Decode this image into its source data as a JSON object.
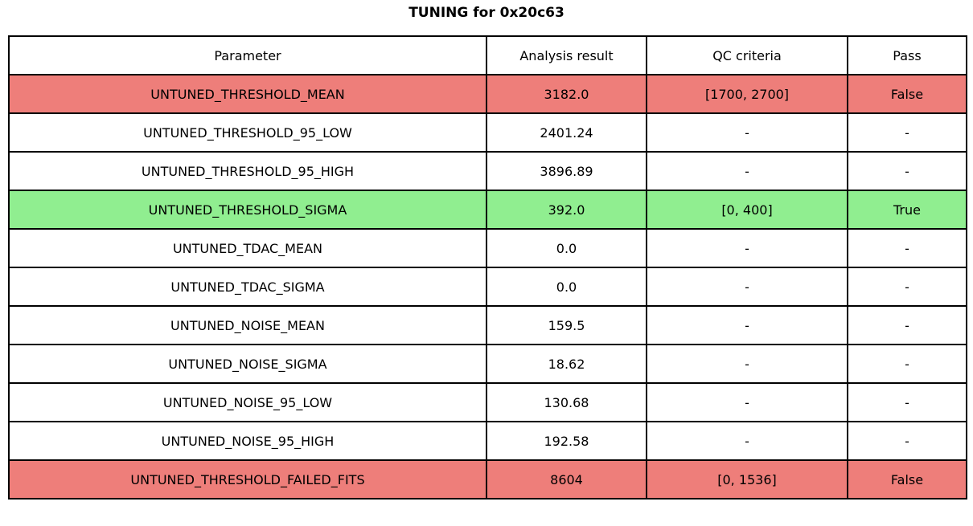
{
  "title": "TUNING for 0x20c63",
  "table": {
    "headers": [
      "Parameter",
      "Analysis result",
      "QC criteria",
      "Pass"
    ],
    "rows": [
      {
        "parameter": "UNTUNED_THRESHOLD_MEAN",
        "result": "3182.0",
        "criteria": "[1700, 2700]",
        "pass": "False",
        "status": "fail"
      },
      {
        "parameter": "UNTUNED_THRESHOLD_95_LOW",
        "result": "2401.24",
        "criteria": "-",
        "pass": "-",
        "status": "none"
      },
      {
        "parameter": "UNTUNED_THRESHOLD_95_HIGH",
        "result": "3896.89",
        "criteria": "-",
        "pass": "-",
        "status": "none"
      },
      {
        "parameter": "UNTUNED_THRESHOLD_SIGMA",
        "result": "392.0",
        "criteria": "[0, 400]",
        "pass": "True",
        "status": "pass"
      },
      {
        "parameter": "UNTUNED_TDAC_MEAN",
        "result": "0.0",
        "criteria": "-",
        "pass": "-",
        "status": "none"
      },
      {
        "parameter": "UNTUNED_TDAC_SIGMA",
        "result": "0.0",
        "criteria": "-",
        "pass": "-",
        "status": "none"
      },
      {
        "parameter": "UNTUNED_NOISE_MEAN",
        "result": "159.5",
        "criteria": "-",
        "pass": "-",
        "status": "none"
      },
      {
        "parameter": "UNTUNED_NOISE_SIGMA",
        "result": "18.62",
        "criteria": "-",
        "pass": "-",
        "status": "none"
      },
      {
        "parameter": "UNTUNED_NOISE_95_LOW",
        "result": "130.68",
        "criteria": "-",
        "pass": "-",
        "status": "none"
      },
      {
        "parameter": "UNTUNED_NOISE_95_HIGH",
        "result": "192.58",
        "criteria": "-",
        "pass": "-",
        "status": "none"
      },
      {
        "parameter": "UNTUNED_THRESHOLD_FAILED_FITS",
        "result": "8604",
        "criteria": "[0, 1536]",
        "pass": "False",
        "status": "fail"
      }
    ]
  },
  "colors": {
    "fail_row": "#ee7e7a",
    "pass_row": "#90ee90",
    "neutral_row": "#ffffff",
    "border": "#000000",
    "text": "#000000"
  },
  "chart_data": {
    "type": "table",
    "title": "TUNING for 0x20c63",
    "columns": [
      "Parameter",
      "Analysis result",
      "QC criteria",
      "Pass"
    ],
    "rows": [
      [
        "UNTUNED_THRESHOLD_MEAN",
        "3182.0",
        "[1700, 2700]",
        "False"
      ],
      [
        "UNTUNED_THRESHOLD_95_LOW",
        "2401.24",
        "-",
        "-"
      ],
      [
        "UNTUNED_THRESHOLD_95_HIGH",
        "3896.89",
        "-",
        "-"
      ],
      [
        "UNTUNED_THRESHOLD_SIGMA",
        "392.0",
        "[0, 400]",
        "True"
      ],
      [
        "UNTUNED_TDAC_MEAN",
        "0.0",
        "-",
        "-"
      ],
      [
        "UNTUNED_TDAC_SIGMA",
        "0.0",
        "-",
        "-"
      ],
      [
        "UNTUNED_NOISE_MEAN",
        "159.5",
        "-",
        "-"
      ],
      [
        "UNTUNED_NOISE_SIGMA",
        "18.62",
        "-",
        "-"
      ],
      [
        "UNTUNED_NOISE_95_LOW",
        "130.68",
        "-",
        "-"
      ],
      [
        "UNTUNED_NOISE_95_HIGH",
        "192.58",
        "-",
        "-"
      ],
      [
        "UNTUNED_THRESHOLD_FAILED_FITS",
        "8604",
        "[0, 1536]",
        "False"
      ]
    ],
    "row_highlight": [
      "fail",
      "none",
      "none",
      "pass",
      "none",
      "none",
      "none",
      "none",
      "none",
      "none",
      "fail"
    ],
    "legend_position": "none",
    "grid": true
  }
}
